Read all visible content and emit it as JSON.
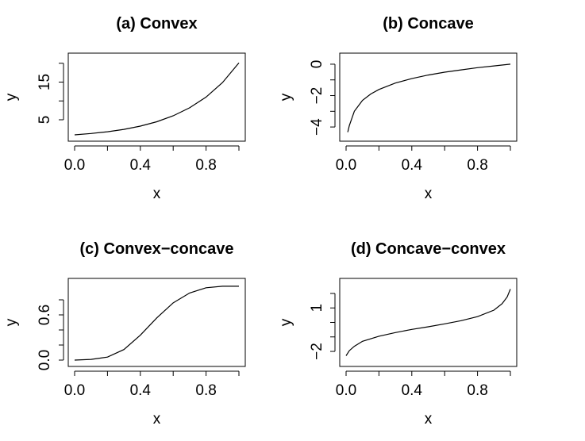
{
  "chart_data": [
    {
      "type": "line",
      "title": "(a) Convex",
      "xlabel": "x",
      "ylabel": "y",
      "xlim": [
        0,
        1
      ],
      "ylim": [
        1,
        21
      ],
      "x_ticks": [
        0.0,
        0.2,
        0.4,
        0.6,
        0.8,
        1.0
      ],
      "x_tick_labels": [
        "0.0",
        "0.4",
        "0.8"
      ],
      "x_tick_labeled": [
        0.0,
        0.4,
        0.8
      ],
      "y_ticks": [
        5,
        10,
        15,
        20
      ],
      "y_tick_labels": [
        "5",
        "15"
      ],
      "y_tick_labeled": [
        5,
        15
      ],
      "series": [
        {
          "x": [
            0.0,
            0.1,
            0.2,
            0.3,
            0.4,
            0.5,
            0.6,
            0.7,
            0.8,
            0.9,
            1.0
          ],
          "y": [
            1.0,
            1.35,
            1.82,
            2.46,
            3.32,
            4.48,
            6.05,
            8.17,
            11.02,
            14.88,
            20.09
          ]
        }
      ]
    },
    {
      "type": "line",
      "title": "(b) Concave",
      "xlabel": "x",
      "ylabel": "y",
      "xlim": [
        0,
        1
      ],
      "ylim": [
        -4.5,
        0.3
      ],
      "x_ticks": [
        0.0,
        0.2,
        0.4,
        0.6,
        0.8,
        1.0
      ],
      "x_tick_labels": [
        "0.0",
        "0.4",
        "0.8"
      ],
      "x_tick_labeled": [
        0.0,
        0.4,
        0.8
      ],
      "y_ticks": [
        -4,
        -3,
        -2,
        -1,
        0
      ],
      "y_tick_labels": [
        "−4",
        "−2",
        "0"
      ],
      "y_tick_labeled": [
        -4,
        -2,
        0
      ],
      "series": [
        {
          "x": [
            0.01,
            0.02,
            0.05,
            0.1,
            0.15,
            0.2,
            0.3,
            0.4,
            0.5,
            0.6,
            0.7,
            0.8,
            0.9,
            1.0
          ],
          "y": [
            -4.33,
            -3.91,
            -3.0,
            -2.3,
            -1.9,
            -1.61,
            -1.2,
            -0.92,
            -0.69,
            -0.51,
            -0.36,
            -0.22,
            -0.11,
            0.0
          ]
        }
      ]
    },
    {
      "type": "line",
      "title": "(c) Convex−concave",
      "xlabel": "x",
      "ylabel": "y",
      "xlim": [
        0,
        1
      ],
      "ylim": [
        0,
        1
      ],
      "x_ticks": [
        0.0,
        0.2,
        0.4,
        0.6,
        0.8,
        1.0
      ],
      "x_tick_labels": [
        "0.0",
        "0.4",
        "0.8"
      ],
      "x_tick_labeled": [
        0.0,
        0.4,
        0.8
      ],
      "y_ticks": [
        0.0,
        0.2,
        0.4,
        0.6,
        0.8
      ],
      "y_tick_labels": [
        "0.0",
        "0.6"
      ],
      "y_tick_labeled": [
        0.0,
        0.6
      ],
      "series": [
        {
          "x": [
            0.0,
            0.1,
            0.2,
            0.3,
            0.4,
            0.5,
            0.6,
            0.7,
            0.8,
            0.9,
            1.0
          ],
          "y": [
            0.0,
            0.01,
            0.04,
            0.14,
            0.33,
            0.56,
            0.76,
            0.89,
            0.96,
            0.98,
            0.98
          ]
        }
      ]
    },
    {
      "type": "line",
      "title": "(d) Concave−convex",
      "xlabel": "x",
      "ylabel": "y",
      "xlim": [
        0,
        1
      ],
      "ylim": [
        -2.6,
        2.6
      ],
      "x_ticks": [
        0.0,
        0.2,
        0.4,
        0.6,
        0.8,
        1.0
      ],
      "x_tick_labels": [
        "0.0",
        "0.4",
        "0.8"
      ],
      "x_tick_labeled": [
        0.0,
        0.4,
        0.8
      ],
      "y_ticks": [
        -2,
        -1,
        0,
        1,
        2
      ],
      "y_tick_labels": [
        "−2",
        "1"
      ],
      "y_tick_labeled": [
        -2,
        1
      ],
      "series": [
        {
          "x": [
            0.0,
            0.02,
            0.05,
            0.1,
            0.2,
            0.3,
            0.4,
            0.5,
            0.6,
            0.7,
            0.8,
            0.9,
            0.95,
            0.98,
            1.0
          ],
          "y": [
            -2.3,
            -1.95,
            -1.65,
            -1.3,
            -0.95,
            -0.7,
            -0.48,
            -0.3,
            -0.1,
            0.12,
            0.4,
            0.85,
            1.3,
            1.75,
            2.3
          ]
        }
      ]
    }
  ]
}
